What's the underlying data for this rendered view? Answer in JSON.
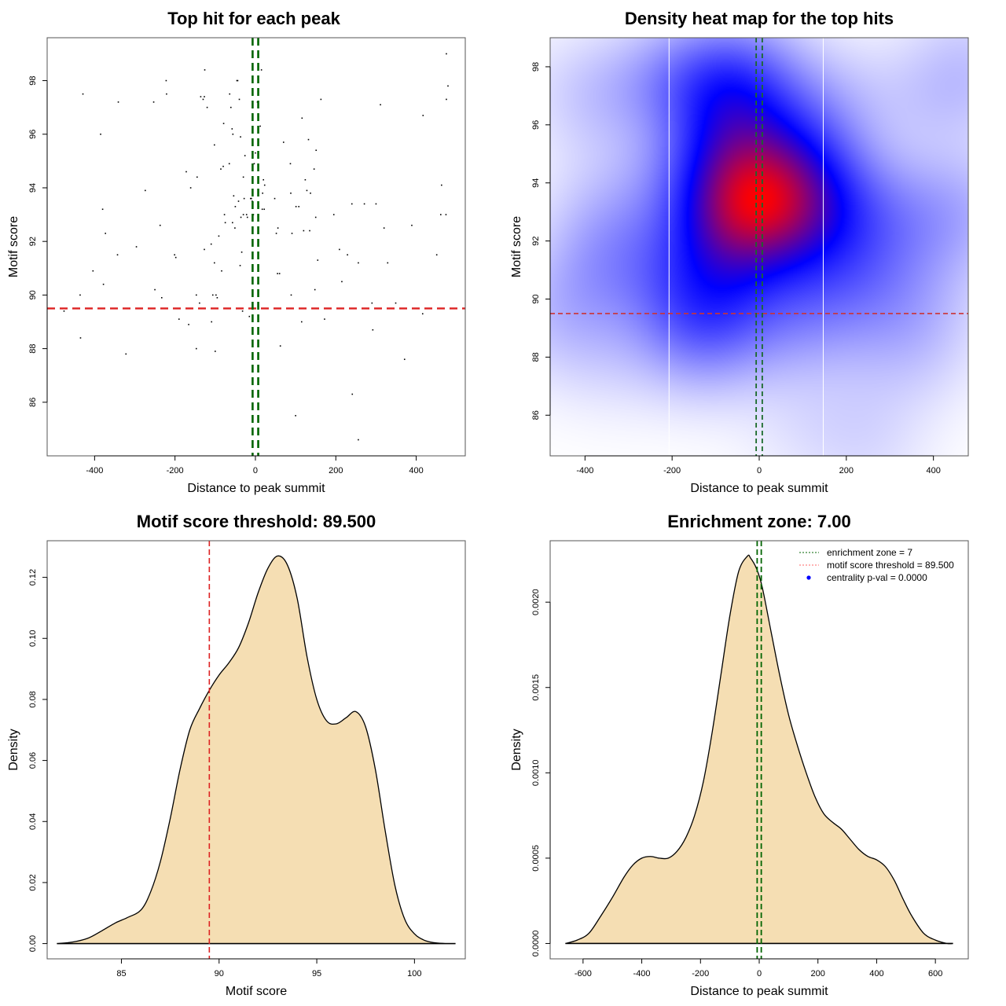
{
  "chart_data": [
    {
      "id": "scatter",
      "type": "scatter",
      "title": "Top hit for each peak",
      "xlabel": "Distance to peak summit",
      "ylabel": "Motif score",
      "xlim": [
        -518,
        522
      ],
      "ylim": [
        84.0,
        99.6
      ],
      "xticks": [
        -400,
        -200,
        0,
        200,
        400
      ],
      "xtick_labels": [
        "-400",
        "-200",
        "0",
        "200",
        "400"
      ],
      "yticks": [
        86,
        88,
        90,
        92,
        94,
        96,
        98
      ],
      "ytick_labels": [
        "86",
        "88",
        "90",
        "92",
        "94",
        "96",
        "98"
      ],
      "grid": false,
      "threshold_line": {
        "axis": "y",
        "value": 89.5,
        "color": "#dd2222",
        "style": "dashed"
      },
      "enrichment_lines": {
        "axis": "x",
        "values": [
          -7,
          7
        ],
        "color": "#006400",
        "style": "dashed"
      },
      "points": [
        [
          -476,
          89.4
        ],
        [
          -436,
          90.0
        ],
        [
          -435,
          88.4
        ],
        [
          -429,
          97.5
        ],
        [
          -404,
          90.9
        ],
        [
          -385,
          96.0
        ],
        [
          -380,
          93.2
        ],
        [
          -378,
          90.4
        ],
        [
          -373,
          92.3
        ],
        [
          -343,
          91.5
        ],
        [
          -341,
          97.2
        ],
        [
          -322,
          87.8
        ],
        [
          -296,
          91.8
        ],
        [
          -274,
          93.9
        ],
        [
          -253,
          97.2
        ],
        [
          -250,
          90.2
        ],
        [
          -237,
          92.6
        ],
        [
          -233,
          89.9
        ],
        [
          -222,
          98.0
        ],
        [
          -221,
          97.5
        ],
        [
          -201,
          91.5
        ],
        [
          -198,
          91.4
        ],
        [
          -190,
          89.1
        ],
        [
          -172,
          94.6
        ],
        [
          -166,
          88.9
        ],
        [
          -161,
          94.0
        ],
        [
          -147,
          90.0
        ],
        [
          -147,
          88.0
        ],
        [
          -145,
          94.4
        ],
        [
          -139,
          89.7
        ],
        [
          -136,
          97.4
        ],
        [
          -130,
          97.3
        ],
        [
          -127,
          97.4
        ],
        [
          -127,
          91.7
        ],
        [
          -126,
          98.4
        ],
        [
          -120,
          97.0
        ],
        [
          -110,
          91.9
        ],
        [
          -109,
          89.0
        ],
        [
          -106,
          90.0
        ],
        [
          -102,
          95.6
        ],
        [
          -102,
          91.2
        ],
        [
          -100,
          87.9
        ],
        [
          -98,
          90.0
        ],
        [
          -95,
          89.9
        ],
        [
          -91,
          92.2
        ],
        [
          -86,
          94.7
        ],
        [
          -84,
          90.9
        ],
        [
          -80,
          94.8
        ],
        [
          -79,
          96.4
        ],
        [
          -77,
          93.0
        ],
        [
          -75,
          92.7
        ],
        [
          -65,
          94.9
        ],
        [
          -64,
          97.5
        ],
        [
          -61,
          97.0
        ],
        [
          -58,
          96.2
        ],
        [
          -57,
          92.7
        ],
        [
          -56,
          96.0
        ],
        [
          -54,
          93.7
        ],
        [
          -51,
          92.5
        ],
        [
          -50,
          93.3
        ],
        [
          -46,
          98.0
        ],
        [
          -44,
          98.0
        ],
        [
          -42,
          93.5
        ],
        [
          -40,
          97.3
        ],
        [
          -38,
          91.1
        ],
        [
          -37,
          95.9
        ],
        [
          -36,
          92.9
        ],
        [
          -34,
          91.6
        ],
        [
          -32,
          89.4
        ],
        [
          -30,
          94.4
        ],
        [
          -30,
          93.0
        ],
        [
          -28,
          93.6
        ],
        [
          -26,
          95.2
        ],
        [
          -22,
          93.0
        ],
        [
          -20,
          92.9
        ],
        [
          -15,
          89.2
        ],
        [
          -12,
          93.6
        ],
        [
          -10,
          93.6
        ],
        [
          -8,
          93.5
        ],
        [
          -5,
          93.0
        ],
        [
          -3,
          94.9
        ],
        [
          0,
          95.3
        ],
        [
          5,
          97.2
        ],
        [
          8,
          93.3
        ],
        [
          12,
          96.3
        ],
        [
          15,
          98.4
        ],
        [
          17,
          93.2
        ],
        [
          18,
          93.8
        ],
        [
          20,
          94.3
        ],
        [
          22,
          93.2
        ],
        [
          23,
          94.1
        ],
        [
          48,
          93.6
        ],
        [
          52,
          92.3
        ],
        [
          55,
          90.8
        ],
        [
          56,
          92.5
        ],
        [
          60,
          90.8
        ],
        [
          62,
          88.1
        ],
        [
          70,
          95.7
        ],
        [
          87,
          94.9
        ],
        [
          88,
          93.8
        ],
        [
          89,
          90.0
        ],
        [
          91,
          92.3
        ],
        [
          100,
          85.5
        ],
        [
          101,
          93.3
        ],
        [
          108,
          93.3
        ],
        [
          115,
          89.0
        ],
        [
          116,
          96.6
        ],
        [
          120,
          92.4
        ],
        [
          124,
          94.3
        ],
        [
          128,
          93.9
        ],
        [
          132,
          95.8
        ],
        [
          135,
          92.4
        ],
        [
          137,
          93.8
        ],
        [
          146,
          94.7
        ],
        [
          148,
          90.2
        ],
        [
          150,
          92.9
        ],
        [
          151,
          95.4
        ],
        [
          155,
          91.3
        ],
        [
          163,
          97.3
        ],
        [
          172,
          89.1
        ],
        [
          195,
          93.0
        ],
        [
          209,
          91.7
        ],
        [
          215,
          90.5
        ],
        [
          229,
          91.5
        ],
        [
          240,
          93.4
        ],
        [
          241,
          86.3
        ],
        [
          256,
          84.6
        ],
        [
          256,
          91.2
        ],
        [
          271,
          93.4
        ],
        [
          290,
          89.7
        ],
        [
          292,
          88.7
        ],
        [
          300,
          93.4
        ],
        [
          311,
          97.1
        ],
        [
          320,
          92.5
        ],
        [
          329,
          91.2
        ],
        [
          349,
          89.7
        ],
        [
          371,
          87.6
        ],
        [
          389,
          92.6
        ],
        [
          416,
          89.3
        ],
        [
          417,
          96.7
        ],
        [
          451,
          91.5
        ],
        [
          461,
          93.0
        ],
        [
          463,
          94.1
        ],
        [
          474,
          93.0
        ],
        [
          475,
          97.3
        ],
        [
          475,
          99.0
        ],
        [
          479,
          97.8
        ]
      ]
    },
    {
      "id": "heatmap",
      "type": "heatmap",
      "title": "Density heat map for the top hits",
      "xlabel": "Distance to peak summit",
      "ylabel": "Motif score",
      "xlim": [
        -480,
        480
      ],
      "ylim": [
        84.6,
        99.0
      ],
      "xticks": [
        -400,
        -200,
        0,
        200,
        400
      ],
      "xtick_labels": [
        "-400",
        "-200",
        "0",
        "200",
        "400"
      ],
      "yticks": [
        86,
        88,
        90,
        92,
        94,
        96,
        98
      ],
      "ytick_labels": [
        "86",
        "88",
        "90",
        "92",
        "94",
        "96",
        "98"
      ],
      "colormap": [
        "#ffffff",
        "#0000ff",
        "#ff0000"
      ],
      "density_peak": {
        "x": 0,
        "y": 93.5
      },
      "white_vertical_lines": [
        -207,
        147
      ],
      "threshold_line": {
        "axis": "y",
        "value": 89.5,
        "color": "#cc3333",
        "style": "dashed"
      },
      "enrichment_lines": {
        "axis": "x",
        "values": [
          -7,
          7
        ],
        "color": "#1a6a2a",
        "style": "dashed"
      },
      "source": "scatter.points"
    },
    {
      "id": "score-density",
      "type": "area",
      "title": "Motif score threshold: 89.500",
      "xlabel": "Motif score",
      "ylabel": "Density",
      "xlim": [
        81.2,
        102.6
      ],
      "ylim": [
        -0.005,
        0.132
      ],
      "xticks": [
        85,
        90,
        95,
        100
      ],
      "xtick_labels": [
        "85",
        "90",
        "95",
        "100"
      ],
      "yticks": [
        0.0,
        0.02,
        0.04,
        0.06,
        0.08,
        0.1,
        0.12
      ],
      "ytick_labels": [
        "0.00",
        "0.02",
        "0.04",
        "0.06",
        "0.08",
        "0.10",
        "0.12"
      ],
      "fill_color": "#f5deb3",
      "threshold_line": {
        "axis": "x",
        "value": 89.5,
        "color": "#dd2222",
        "style": "dashed"
      },
      "x": [
        81.7,
        82.5,
        83.3,
        84.0,
        84.7,
        85.3,
        86.0,
        86.5,
        87.0,
        87.5,
        88.0,
        88.5,
        89.0,
        89.5,
        90.0,
        90.5,
        91.0,
        91.5,
        92.0,
        92.5,
        93.0,
        93.5,
        94.0,
        94.5,
        95.0,
        95.5,
        96.0,
        96.5,
        97.0,
        97.5,
        98.0,
        98.5,
        99.0,
        99.5,
        100.0,
        100.5,
        101.0,
        101.5,
        102.1
      ],
      "y": [
        0.0,
        0.0005,
        0.0018,
        0.0042,
        0.0068,
        0.0085,
        0.011,
        0.017,
        0.027,
        0.041,
        0.057,
        0.07,
        0.077,
        0.083,
        0.088,
        0.092,
        0.097,
        0.105,
        0.115,
        0.123,
        0.127,
        0.124,
        0.113,
        0.094,
        0.08,
        0.073,
        0.072,
        0.074,
        0.076,
        0.071,
        0.057,
        0.037,
        0.019,
        0.008,
        0.0032,
        0.0011,
        0.0003,
        5e-05,
        0.0
      ]
    },
    {
      "id": "distance-density",
      "type": "area",
      "title": "Enrichment zone: 7.00",
      "xlabel": "Distance to peak summit",
      "ylabel": "Density",
      "xlim": [
        -712,
        712
      ],
      "ylim": [
        -9e-05,
        0.00236
      ],
      "xticks": [
        -600,
        -400,
        -200,
        0,
        200,
        400,
        600
      ],
      "xtick_labels": [
        "-600",
        "-400",
        "-200",
        "0",
        "200",
        "400",
        "600"
      ],
      "yticks": [
        0.0,
        0.0005,
        0.001,
        0.0015,
        0.002
      ],
      "ytick_labels": [
        "0.0000",
        "0.0005",
        "0.0010",
        "0.0015",
        "0.0020"
      ],
      "fill_color": "#f5deb3",
      "enrichment_lines": {
        "axis": "x",
        "values": [
          -7,
          7
        ],
        "color": "#006400",
        "style": "dashed"
      },
      "x": [
        -660,
        -620,
        -580,
        -540,
        -500,
        -460,
        -430,
        -400,
        -370,
        -340,
        -310,
        -280,
        -250,
        -220,
        -190,
        -160,
        -130,
        -100,
        -70,
        -40,
        -30,
        -10,
        10,
        40,
        70,
        100,
        130,
        160,
        190,
        220,
        250,
        280,
        310,
        340,
        370,
        400,
        430,
        460,
        490,
        520,
        560,
        600,
        640,
        660
      ],
      "y": [
        0.0,
        2e-05,
        6e-05,
        0.00016,
        0.00027,
        0.00039,
        0.00046,
        0.0005,
        0.00051,
        0.0005,
        0.0005,
        0.00054,
        0.00062,
        0.00075,
        0.00095,
        0.00124,
        0.00158,
        0.00192,
        0.00218,
        0.00227,
        0.00226,
        0.0022,
        0.00209,
        0.00183,
        0.00157,
        0.00134,
        0.00116,
        0.001,
        0.00086,
        0.00076,
        0.00071,
        0.00067,
        0.00061,
        0.00055,
        0.00051,
        0.00049,
        0.00045,
        0.00037,
        0.00026,
        0.00016,
        6e-05,
        2e-05,
        0.0,
        0.0
      ],
      "legend": {
        "position": "top-right",
        "entries": [
          {
            "label": "enrichment zone = 7",
            "symbol": "dotted-line",
            "color": "#006400"
          },
          {
            "label": "motif score threshold = 89.500",
            "symbol": "dotted-line",
            "color": "#ff6666"
          },
          {
            "label": "centrality p-val = 0.0000",
            "symbol": "dot",
            "color": "#0000ff"
          }
        ]
      }
    }
  ]
}
